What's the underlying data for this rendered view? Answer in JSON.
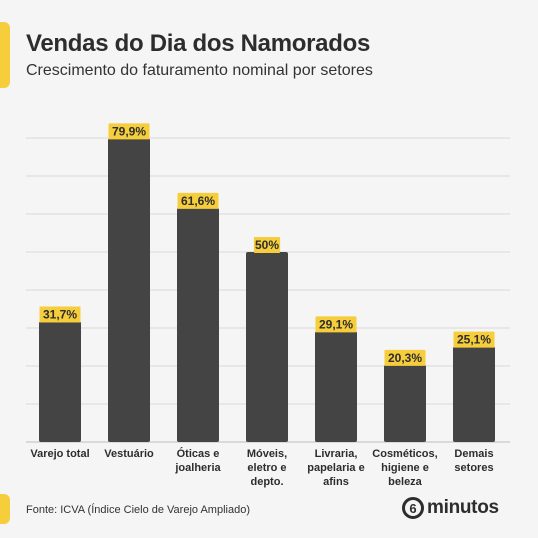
{
  "header": {
    "title": "Vendas do Dia dos Namorados",
    "subtitle": "Crescimento do faturamento nominal por setores"
  },
  "footer": {
    "source": "Fonte: ICVA (Índice Cielo de Varejo Ampliado)",
    "logo_mark": "6",
    "logo_text": "minutos"
  },
  "colors": {
    "accent": "#f6cd3a",
    "bar": "#444444",
    "text": "#2d2d2d",
    "grid": "#d9d9d9"
  },
  "chart_data": {
    "type": "bar",
    "title": "Vendas do Dia dos Namorados",
    "subtitle": "Crescimento do faturamento nominal por setores",
    "categories": [
      [
        "Varejo total"
      ],
      [
        "Vestuário"
      ],
      [
        "Óticas e",
        "joalheria"
      ],
      [
        "Móveis,",
        "eletro e",
        "depto."
      ],
      [
        "Livraria,",
        "papelaria e",
        "afins"
      ],
      [
        "Cosméticos,",
        "higiene e",
        "beleza"
      ],
      [
        "Demais",
        "setores"
      ]
    ],
    "values": [
      31.7,
      79.9,
      61.6,
      50,
      29.1,
      20.3,
      25.1
    ],
    "value_labels": [
      "31,7%",
      "79,9%",
      "61,6%",
      "50%",
      "29,1%",
      "20,3%",
      "25,1%"
    ],
    "unit": "%",
    "ylim": [
      0,
      80
    ],
    "grid": true,
    "legend": "none"
  }
}
